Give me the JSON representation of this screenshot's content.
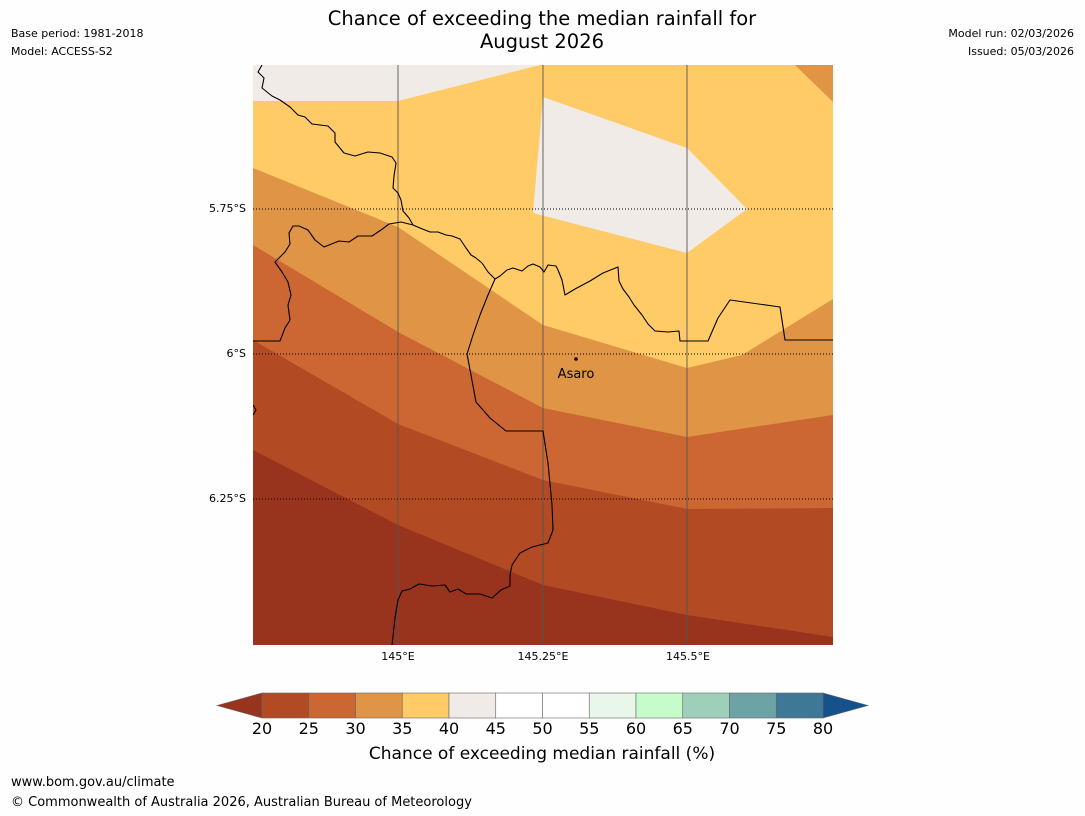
{
  "header": {
    "title_line1": "Chance of exceeding the median rainfall for",
    "title_line2": "August 2026",
    "base_period": "Base period: 1981-2018",
    "model": "Model: ACCESS-S2",
    "model_run": "Model run: 02/03/2026",
    "issued": "Issued: 05/03/2026"
  },
  "map": {
    "lat_labels": [
      "5.75°S",
      "6°S",
      "6.25°S"
    ],
    "lon_labels": [
      "145°E",
      "145.25°E",
      "145.5°E"
    ],
    "place_label": "Asaro"
  },
  "colorbar": {
    "ticks": [
      "20",
      "25",
      "30",
      "35",
      "40",
      "45",
      "50",
      "55",
      "60",
      "65",
      "70",
      "75",
      "80"
    ],
    "colors": {
      "below_20": "#98331e",
      "20_25": "#b24b24",
      "25_30": "#cc6632",
      "30_35": "#e09445",
      "35_40": "#fecb66",
      "40_45": "#f0ebe6",
      "45_50": "#ffffff",
      "50_55": "#ffffff",
      "55_60": "#e9f7ea",
      "60_65": "#c6fcca",
      "65_70": "#9ecfb9",
      "70_75": "#6ea3a6",
      "75_80": "#3f7896",
      "above_80": "#15518a"
    },
    "label": "Chance of exceeding median rainfall (%)"
  },
  "footer": {
    "url": "www.bom.gov.au/climate",
    "copyright": "© Commonwealth of Australia 2026, Australian Bureau of Meteorology"
  }
}
